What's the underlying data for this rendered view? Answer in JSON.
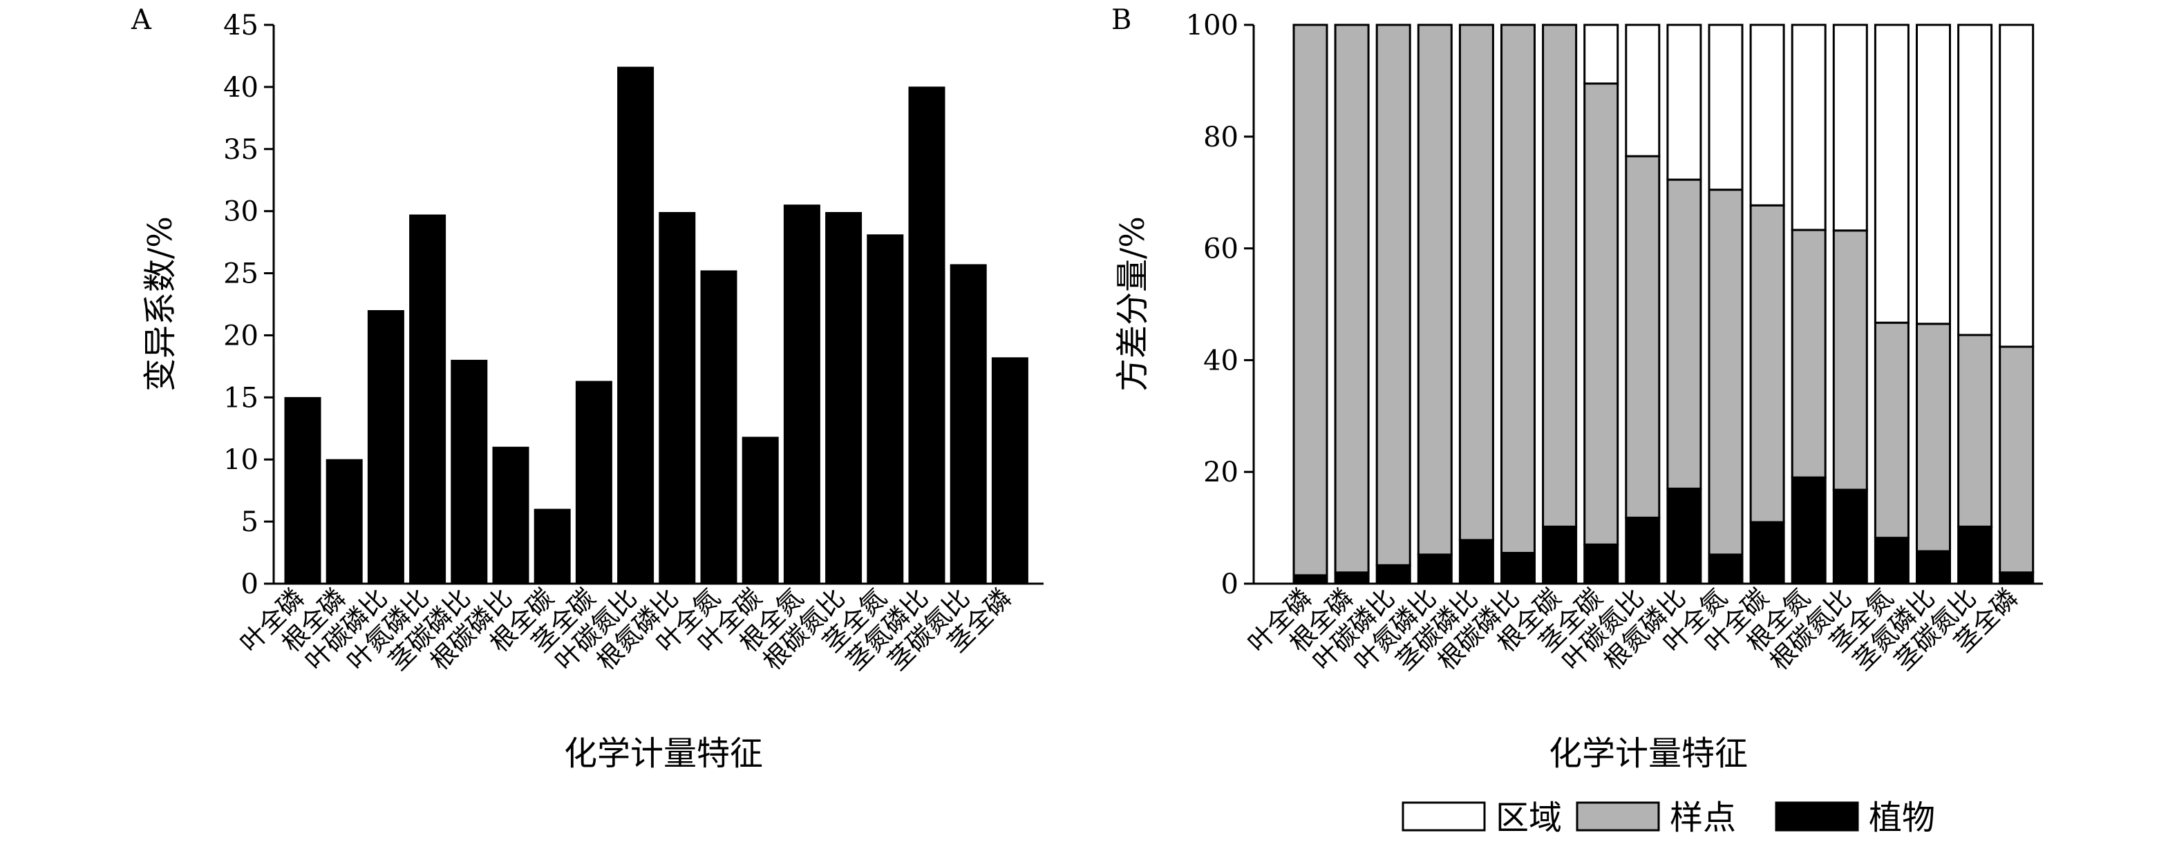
{
  "chart_data": [
    {
      "panel": "A",
      "type": "bar",
      "xlabel": "化学计量特征",
      "ylabel": "变异系数/%",
      "ylim": [
        0,
        45
      ],
      "yticks": [
        0,
        5,
        10,
        15,
        20,
        25,
        30,
        35,
        40,
        45
      ],
      "categories": [
        "叶全磷",
        "根全磷",
        "叶碳磷比",
        "叶氮磷比",
        "茎碳磷比",
        "根碳磷比",
        "根全碳",
        "茎全碳",
        "叶碳氮比",
        "根氮磷比",
        "叶全氮",
        "叶全碳",
        "根全氮",
        "根碳氮比",
        "茎全氮",
        "茎氮磷比",
        "茎碳氮比",
        "茎全磷"
      ],
      "values": [
        15,
        10,
        22,
        29.7,
        18,
        11,
        6,
        16.3,
        41.6,
        29.9,
        25.2,
        11.8,
        30.5,
        29.9,
        28.1,
        40,
        25.7,
        18.2
      ],
      "bar_color": "#000000"
    },
    {
      "panel": "B",
      "type": "bar",
      "stacked": true,
      "xlabel": "化学计量特征",
      "ylabel": "方差分量/%",
      "ylim": [
        0,
        100
      ],
      "yticks": [
        0,
        20,
        40,
        60,
        80,
        100
      ],
      "categories": [
        "叶全磷",
        "根全磷",
        "叶碳磷比",
        "叶氮磷比",
        "茎碳磷比",
        "根碳磷比",
        "根全碳",
        "茎全碳",
        "叶碳氮比",
        "根氮磷比",
        "叶全氮",
        "叶全碳",
        "根全氮",
        "根碳氮比",
        "茎全氮",
        "茎氮磷比",
        "茎碳氮比",
        "茎全磷"
      ],
      "series": [
        {
          "name": "植物",
          "color": "#000000",
          "values": [
            1.5,
            2,
            3.3,
            5.2,
            7.8,
            5.5,
            10.2,
            7,
            11.8,
            17,
            5.2,
            11,
            19,
            16.8,
            8.2,
            5.8,
            10.2,
            2
          ]
        },
        {
          "name": "样点",
          "color": "#b3b3b3",
          "values": [
            98.5,
            98,
            96.7,
            94.8,
            92.2,
            94.5,
            89.8,
            82.5,
            64.7,
            55.3,
            65.3,
            56.7,
            44.3,
            46.4,
            38.5,
            40.7,
            34.3,
            40.4
          ]
        },
        {
          "name": "区域",
          "color": "#ffffff",
          "values": [
            0,
            0,
            0,
            0,
            0,
            0,
            0,
            10.5,
            23.5,
            27.7,
            29.5,
            32.3,
            36.7,
            36.8,
            53.3,
            53.5,
            55.5,
            57.6
          ]
        }
      ],
      "legend": {
        "placement": "bottom",
        "order": [
          "区域",
          "样点",
          "植物"
        ]
      }
    }
  ]
}
